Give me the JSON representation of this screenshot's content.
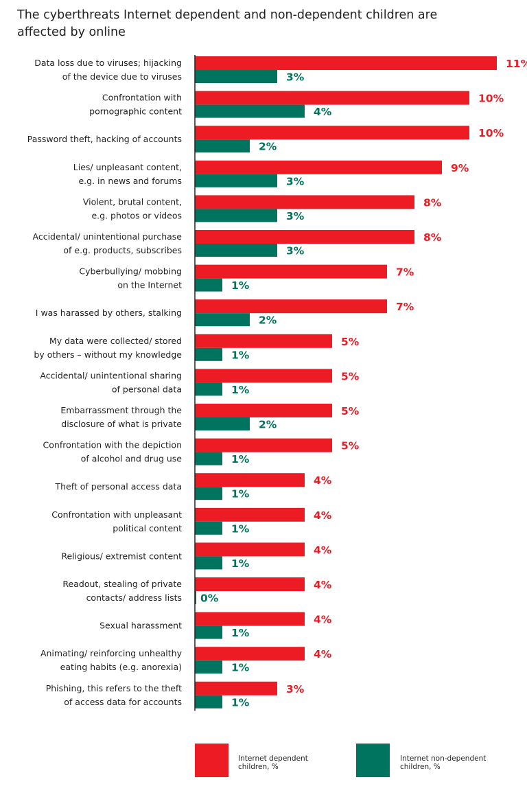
{
  "chart_data": {
    "type": "bar",
    "orientation": "horizontal",
    "title": "The cyberthreats Internet dependent and non-dependent children are affected by online",
    "unit": "%",
    "categories": [
      [
        "Data loss due to viruses; hijacking",
        "of the device due to viruses"
      ],
      [
        "Confrontation with",
        "pornographic content"
      ],
      [
        "Password theft, hacking of accounts"
      ],
      [
        "Lies/ unpleasant content,",
        "e.g. in news and forums"
      ],
      [
        "Violent, brutal content,",
        "e.g. photos or videos"
      ],
      [
        "Accidental/ unintentional purchase",
        "of e.g. products, subscribes"
      ],
      [
        "Cyberbullying/ mobbing",
        "on the Internet"
      ],
      [
        "I was harassed by others, stalking"
      ],
      [
        "My data were collected/ stored",
        "by others – without my knowledge"
      ],
      [
        "Accidental/ unintentional sharing",
        "of personal data"
      ],
      [
        "Embarrassment through the",
        "disclosure of what is private"
      ],
      [
        "Confrontation with the depiction",
        "of alcohol and drug use"
      ],
      [
        "Theft of personal access data"
      ],
      [
        "Confrontation with unpleasant",
        "political content"
      ],
      [
        "Religious/ extremist content"
      ],
      [
        "Readout, stealing of private",
        "contacts/ address lists"
      ],
      [
        "Sexual harassment"
      ],
      [
        "Animating/ reinforcing unhealthy",
        "eating habits (e.g. anorexia)"
      ],
      [
        "Phishing, this refers to the theft",
        "of access data for accounts"
      ]
    ],
    "series": [
      {
        "name": "Internet dependent children, %",
        "color": "#ed1c24",
        "values": [
          11,
          10,
          10,
          9,
          8,
          8,
          7,
          7,
          5,
          5,
          5,
          5,
          4,
          4,
          4,
          4,
          4,
          4,
          3
        ]
      },
      {
        "name": "Internet non-dependent children, %",
        "color": "#00745f",
        "values": [
          3,
          4,
          2,
          3,
          3,
          3,
          1,
          2,
          1,
          1,
          2,
          1,
          1,
          1,
          1,
          0,
          1,
          1,
          1
        ]
      }
    ],
    "legend": "bottom",
    "grid": false
  }
}
